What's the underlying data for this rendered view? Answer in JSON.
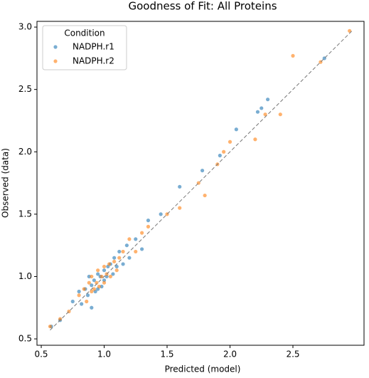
{
  "chart_data": {
    "type": "scatter",
    "title": "Goodness of Fit: All Proteins",
    "xlabel": "Predicted (model)",
    "ylabel": "Observed (data)",
    "xlim": [
      0.466,
      3.065
    ],
    "ylim": [
      0.449,
      3.046
    ],
    "xticks": [
      0.5,
      {
        "value": 1,
        "label": "1.0"
      },
      1.5,
      {
        "value": 2,
        "label": "2.0"
      },
      2.5
    ],
    "yticks": [
      0.5,
      {
        "value": 1,
        "label": "1.0"
      },
      1.5,
      {
        "value": 2,
        "label": "2.0"
      },
      2.5,
      {
        "value": 3,
        "label": "3.0"
      }
    ],
    "legend_title": "Condition",
    "legend_position": "upper-left",
    "identity_line": {
      "x": [
        0.57,
        2.97
      ],
      "y": [
        0.57,
        2.97
      ]
    },
    "series": [
      {
        "name": "NADPH.r1",
        "color": "#1f77b4",
        "x": [
          0.58,
          0.65,
          0.75,
          0.8,
          0.82,
          0.85,
          0.87,
          0.88,
          0.9,
          0.9,
          0.92,
          0.93,
          0.95,
          0.95,
          0.97,
          0.98,
          1.0,
          1.0,
          1.02,
          1.03,
          1.05,
          1.07,
          1.08,
          1.1,
          1.12,
          1.15,
          1.18,
          1.2,
          1.25,
          1.3,
          1.35,
          1.45,
          1.6,
          1.78,
          1.92,
          2.05,
          2.22,
          2.3,
          2.25,
          2.75
        ],
        "values": [
          0.6,
          0.65,
          0.8,
          0.88,
          0.78,
          0.9,
          0.85,
          1.0,
          0.93,
          0.75,
          0.97,
          0.88,
          1.02,
          0.9,
          1.0,
          0.92,
          1.05,
          0.97,
          1.0,
          1.08,
          1.1,
          1.02,
          1.15,
          1.08,
          1.2,
          1.1,
          1.25,
          1.15,
          1.3,
          1.22,
          1.45,
          1.5,
          1.72,
          1.85,
          1.97,
          2.18,
          2.32,
          2.42,
          2.35,
          2.75
        ]
      },
      {
        "name": "NADPH.r2",
        "color": "#ff7f0e",
        "x": [
          0.57,
          0.65,
          0.72,
          0.8,
          0.84,
          0.86,
          0.88,
          0.9,
          0.9,
          0.92,
          0.94,
          0.95,
          0.96,
          0.98,
          1.0,
          1.0,
          1.02,
          1.04,
          1.05,
          1.08,
          1.1,
          1.12,
          1.15,
          1.2,
          1.25,
          1.3,
          1.35,
          1.5,
          1.6,
          1.75,
          1.8,
          1.9,
          1.95,
          2.0,
          2.2,
          2.28,
          2.4,
          2.5,
          2.72,
          2.95
        ],
        "values": [
          0.6,
          0.66,
          0.72,
          0.85,
          0.9,
          0.8,
          0.95,
          0.88,
          1.0,
          0.9,
          0.95,
          1.05,
          0.92,
          1.0,
          1.08,
          0.95,
          1.02,
          1.1,
          1.0,
          1.12,
          1.05,
          1.15,
          1.2,
          1.3,
          1.2,
          1.35,
          1.4,
          1.5,
          1.55,
          1.75,
          1.65,
          1.9,
          2.0,
          2.08,
          2.1,
          2.3,
          2.3,
          2.77,
          2.72,
          2.97
        ]
      }
    ]
  }
}
